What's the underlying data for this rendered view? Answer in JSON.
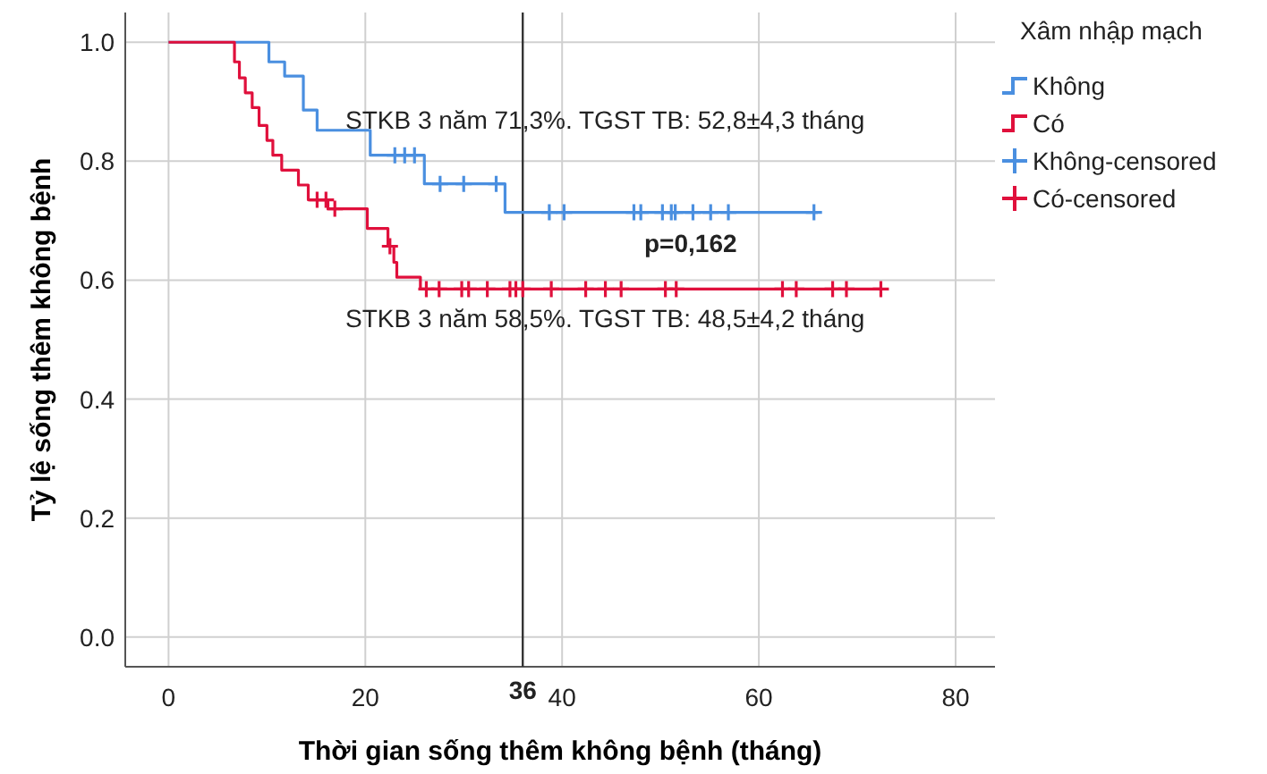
{
  "chart_data": {
    "type": "step",
    "xlabel": "Thời gian sống thêm không bệnh (tháng)",
    "ylabel": "Tỷ lệ sống thêm không bệnh",
    "legend_title": "Xâm nhập mạch",
    "legend": "right",
    "grid": true,
    "xlim": [
      -4.4,
      84
    ],
    "xticks": [
      0,
      20,
      40,
      60,
      80
    ],
    "ylim": [
      -0.05,
      1.05
    ],
    "yticks": [
      {
        "value": 0,
        "label": "0.0"
      },
      {
        "value": 0.2,
        "label": "0.2"
      },
      {
        "value": 0.4,
        "label": "0.4"
      },
      {
        "value": 0.6,
        "label": "0.6"
      },
      {
        "value": 0.8,
        "label": "0.8"
      },
      {
        "value": 1,
        "label": "1.0"
      }
    ],
    "series": [
      {
        "name": "Không",
        "color": "#4a8fe0",
        "x": [
          0,
          10.2,
          11.8,
          13.7,
          15.1,
          20.5,
          26,
          34.2,
          66
        ],
        "values": [
          1,
          0.967,
          0.943,
          0.886,
          0.852,
          0.81,
          0.762,
          0.714,
          0.714
        ]
      },
      {
        "name": "Có",
        "color": "#e0103c",
        "x": [
          0,
          6.7,
          7.2,
          7.8,
          8.5,
          9.2,
          10,
          10.6,
          11.5,
          13.2,
          14.2,
          16.2,
          20.2,
          22.3,
          22.9,
          23.2,
          25.6,
          72.4
        ],
        "values": [
          1,
          0.967,
          0.94,
          0.915,
          0.89,
          0.86,
          0.835,
          0.81,
          0.785,
          0.76,
          0.735,
          0.72,
          0.687,
          0.657,
          0.63,
          0.605,
          0.585,
          0.585
        ]
      },
      {
        "name": "Không-censored",
        "type": "scatter",
        "marker": "cross",
        "color": "#4a8fe0",
        "x": [
          23,
          24,
          25,
          27.6,
          30,
          33.3,
          38.7,
          40.2,
          47.3,
          48,
          50.2,
          51.1,
          51.5,
          53.3,
          55.1,
          56.9,
          65.6
        ],
        "values": [
          0.81,
          0.81,
          0.81,
          0.762,
          0.762,
          0.762,
          0.714,
          0.714,
          0.714,
          0.714,
          0.714,
          0.714,
          0.714,
          0.714,
          0.714,
          0.714,
          0.714
        ]
      },
      {
        "name": "Có-censored",
        "type": "scatter",
        "marker": "cross",
        "color": "#e0103c",
        "x": [
          15.1,
          16,
          16.9,
          22.5,
          26.2,
          27.5,
          29.8,
          30.5,
          32.4,
          34.7,
          35.3,
          36,
          38.9,
          42.4,
          44.4,
          46,
          50.5,
          51.6,
          62.4,
          63.8,
          67.5,
          68.9,
          72.4
        ],
        "values": [
          0.735,
          0.735,
          0.72,
          0.657,
          0.585,
          0.585,
          0.585,
          0.585,
          0.585,
          0.585,
          0.585,
          0.585,
          0.585,
          0.585,
          0.585,
          0.585,
          0.585,
          0.585,
          0.585,
          0.585,
          0.585,
          0.585,
          0.585
        ]
      }
    ],
    "ref_lines": [
      {
        "axis": "x",
        "value": 36,
        "label": "36",
        "color": "#333333"
      }
    ],
    "annotations": [
      "STKB 3 năm 71,3%. TGST TB: 52,8±4,3 tháng",
      "p=0,162",
      "STKB 3 năm 58,5%. TGST TB: 48,5±4,2 tháng"
    ]
  }
}
